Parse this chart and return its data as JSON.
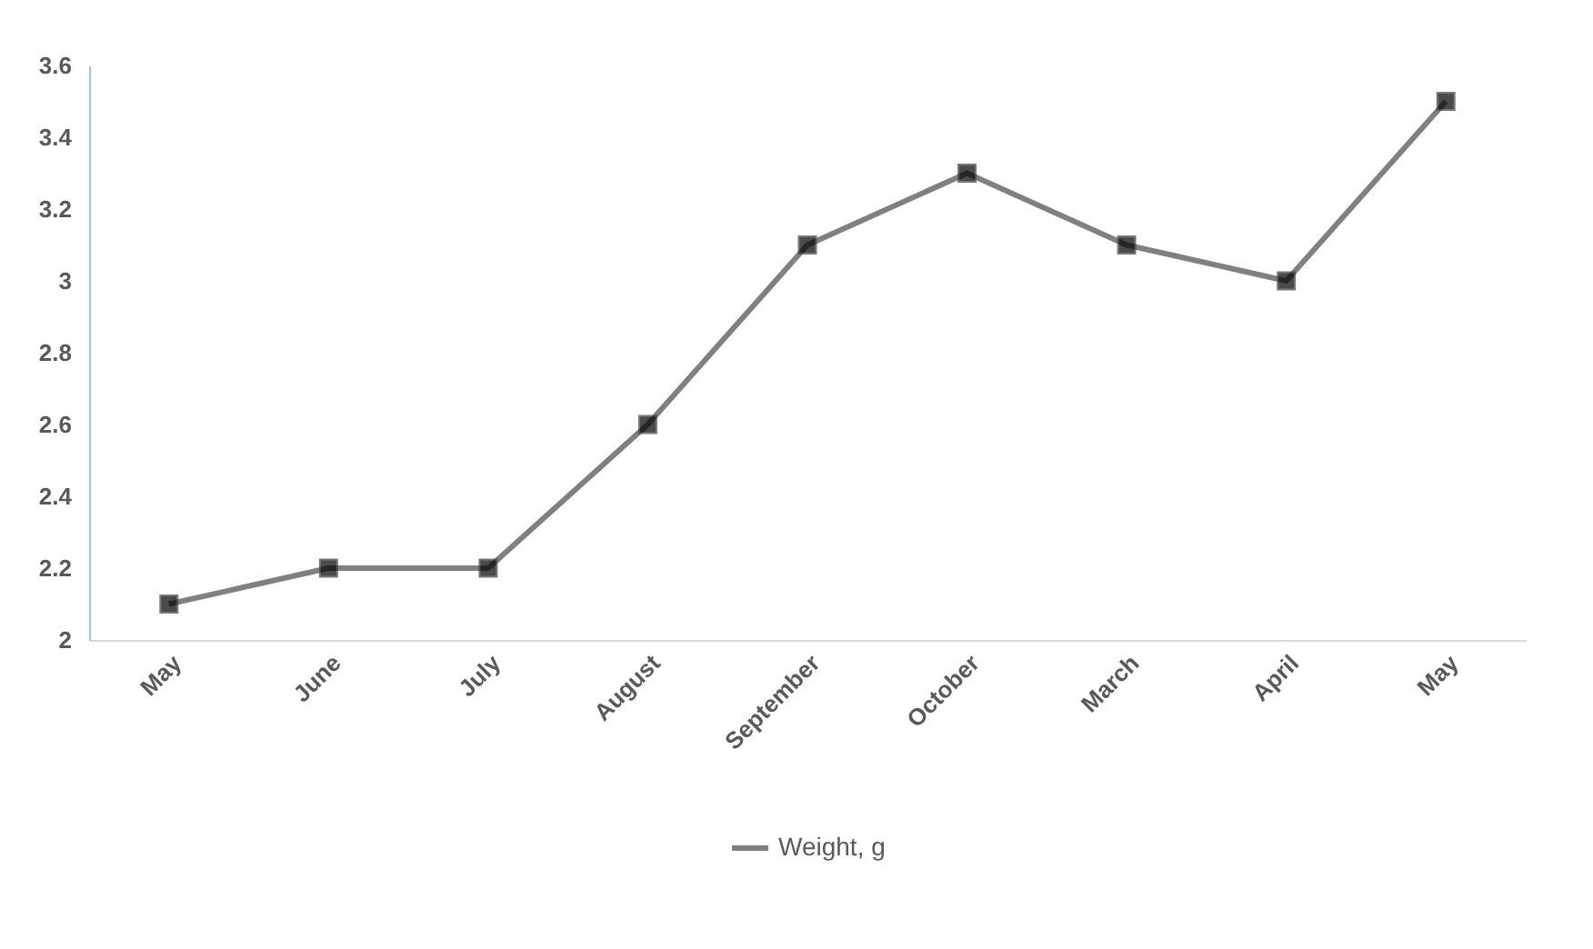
{
  "chart_data": {
    "type": "line",
    "categories": [
      "May",
      "June",
      "July",
      "August",
      "September",
      "October",
      "March",
      "April",
      "May"
    ],
    "series": [
      {
        "name": "Weight, g",
        "color": "#808080",
        "values": [
          2.1,
          2.2,
          2.2,
          2.6,
          3.1,
          3.3,
          3.1,
          3.0,
          3.5
        ]
      }
    ],
    "ylim": [
      2,
      3.6
    ],
    "yticks": [
      2,
      2.2,
      2.4,
      2.6,
      2.8,
      3,
      3.2,
      3.4,
      3.6
    ],
    "marker": "square",
    "line_style": "solid",
    "legend": "bottom"
  }
}
